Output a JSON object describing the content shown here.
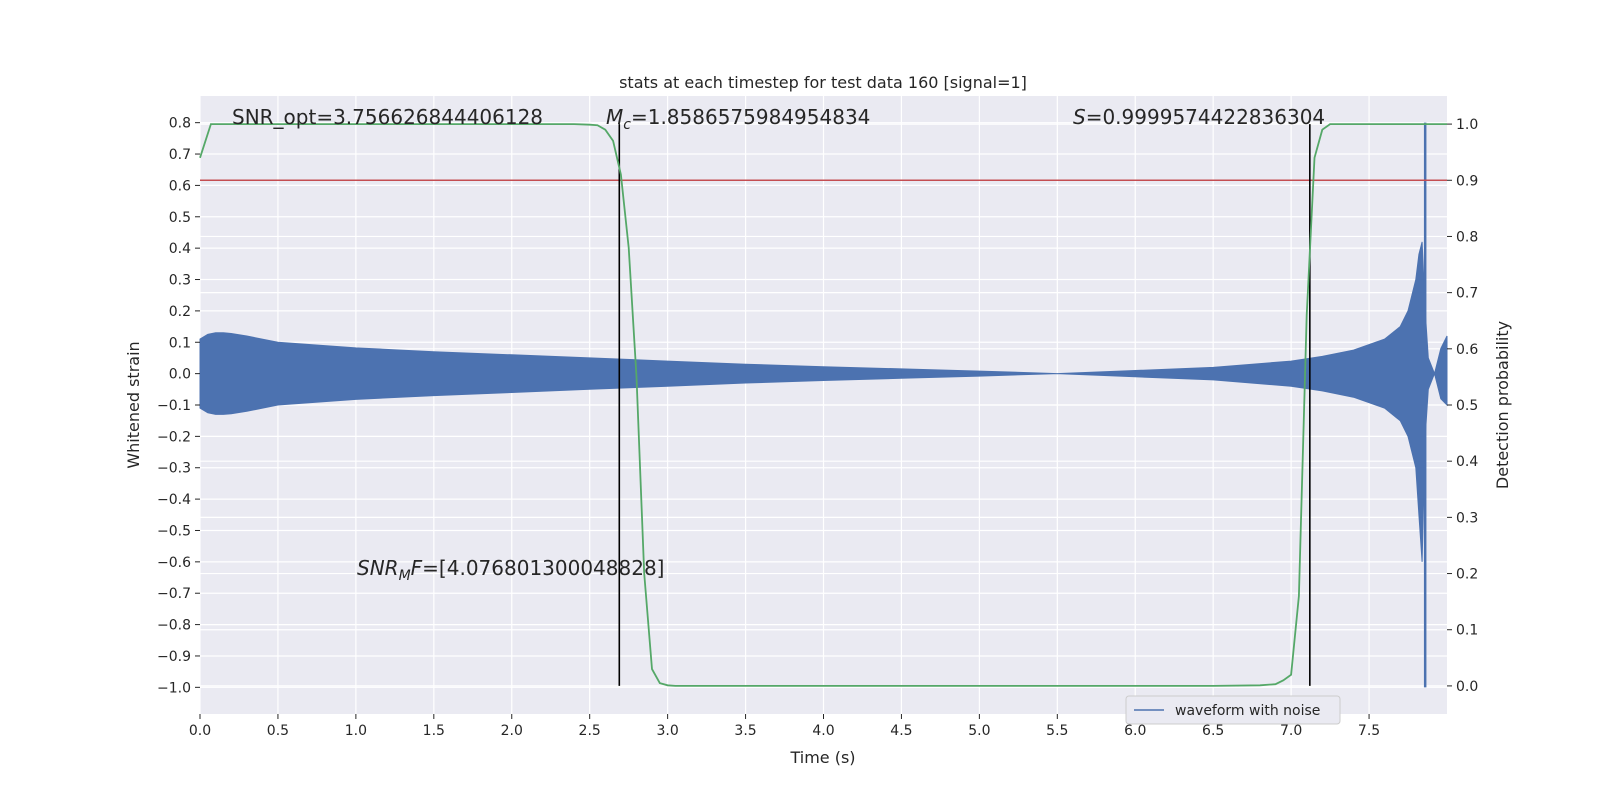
{
  "chart_data": {
    "type": "line",
    "title": "stats at each timestep for test data 160 [signal=1]",
    "xlabel": "Time (s)",
    "ylabel": "Whitened strain",
    "ylabel_right": "Detection probability",
    "xlim": [
      0.0,
      8.0
    ],
    "ylim": [
      -1.085,
      0.885
    ],
    "ylim_right": [
      -0.05,
      1.05
    ],
    "x_ticks": [
      "0.0",
      "0.5",
      "1.0",
      "1.5",
      "2.0",
      "2.5",
      "3.0",
      "3.5",
      "4.0",
      "4.5",
      "5.0",
      "5.5",
      "6.0",
      "6.5",
      "7.0",
      "7.5"
    ],
    "y_ticks": [
      "0.8",
      "0.7",
      "0.6",
      "0.5",
      "0.4",
      "0.3",
      "0.2",
      "0.1",
      "0.0",
      "−0.1",
      "−0.2",
      "−0.3",
      "−0.4",
      "−0.5",
      "−0.6",
      "−0.7",
      "−0.8",
      "−0.9",
      "−1.0"
    ],
    "y_right_ticks": [
      "1.0",
      "0.9",
      "0.8",
      "0.7",
      "0.6",
      "0.5",
      "0.4",
      "0.3",
      "0.2",
      "0.1",
      "0.0"
    ],
    "grid": true,
    "legend": {
      "position": "lower-right",
      "entries": [
        "waveform with noise"
      ]
    },
    "colors": {
      "waveform": "#4c72b0",
      "probability": "#55a868",
      "threshold": "#c44e52",
      "markers": "#000000",
      "background": "#eaeaf2"
    },
    "annotations": {
      "snr_opt": "SNR_opt=3.756626844406128",
      "mc_symbol": "M",
      "mc_sub": "c",
      "mc_value": "=1.8586575984954834",
      "s_symbol": "S",
      "s_value": "=0.9999574422836304",
      "snrmf_symbol": "SNR",
      "snrmf_sub": "M",
      "snrmf_sym2": "F",
      "snrmf_value": "=[4.076801300048828]"
    },
    "series": [
      {
        "name": "waveform with noise",
        "axis": "left",
        "envelope_t": [
          0.0,
          0.05,
          0.1,
          0.15,
          0.2,
          0.3,
          0.5,
          1.0,
          1.5,
          2.0,
          2.5,
          3.0,
          3.5,
          4.0,
          4.5,
          5.0,
          5.5,
          6.0,
          6.5,
          7.0,
          7.2,
          7.4,
          7.6,
          7.7,
          7.75,
          7.8,
          7.82,
          7.84,
          7.86,
          7.88,
          7.92,
          7.96,
          8.0
        ],
        "envelope_upper": [
          0.11,
          0.125,
          0.13,
          0.13,
          0.128,
          0.12,
          0.1,
          0.082,
          0.07,
          0.06,
          0.05,
          0.04,
          0.03,
          0.022,
          0.015,
          0.008,
          0.0,
          0.01,
          0.02,
          0.04,
          0.055,
          0.075,
          0.11,
          0.15,
          0.2,
          0.3,
          0.38,
          0.42,
          0.2,
          0.05,
          0.0,
          0.08,
          0.12
        ],
        "envelope_lower": [
          -0.11,
          -0.125,
          -0.13,
          -0.13,
          -0.128,
          -0.12,
          -0.1,
          -0.082,
          -0.07,
          -0.06,
          -0.05,
          -0.04,
          -0.03,
          -0.022,
          -0.015,
          -0.008,
          0.0,
          -0.01,
          -0.02,
          -0.04,
          -0.055,
          -0.075,
          -0.11,
          -0.15,
          -0.2,
          -0.3,
          -0.45,
          -0.6,
          -0.2,
          -0.05,
          0.0,
          -0.08,
          -0.1
        ],
        "spike": {
          "t": 7.86,
          "top": 0.8,
          "bottom": -1.0
        }
      },
      {
        "name": "detection probability",
        "axis": "right",
        "x": [
          0.0,
          0.07,
          0.1,
          0.5,
          1.0,
          1.5,
          2.0,
          2.4,
          2.5,
          2.55,
          2.6,
          2.65,
          2.7,
          2.75,
          2.8,
          2.85,
          2.9,
          2.95,
          3.0,
          3.05,
          3.5,
          4.0,
          5.0,
          6.0,
          6.5,
          6.8,
          6.9,
          6.95,
          7.0,
          7.05,
          7.1,
          7.15,
          7.2,
          7.25,
          8.0
        ],
        "y": [
          0.94,
          1.0,
          1.0,
          1.0,
          1.0,
          1.0,
          1.0,
          1.0,
          0.999,
          0.998,
          0.99,
          0.97,
          0.91,
          0.78,
          0.55,
          0.2,
          0.03,
          0.005,
          0.001,
          0.0,
          0.0,
          0.0,
          0.0,
          0.0,
          0.0,
          0.001,
          0.003,
          0.01,
          0.02,
          0.16,
          0.66,
          0.94,
          0.99,
          1.0,
          1.0
        ]
      },
      {
        "name": "threshold",
        "axis": "right",
        "value": 0.9
      },
      {
        "name": "markers",
        "axis": "right",
        "x": [
          2.69,
          7.12
        ],
        "from": 0.0,
        "to": 1.0
      }
    ]
  }
}
